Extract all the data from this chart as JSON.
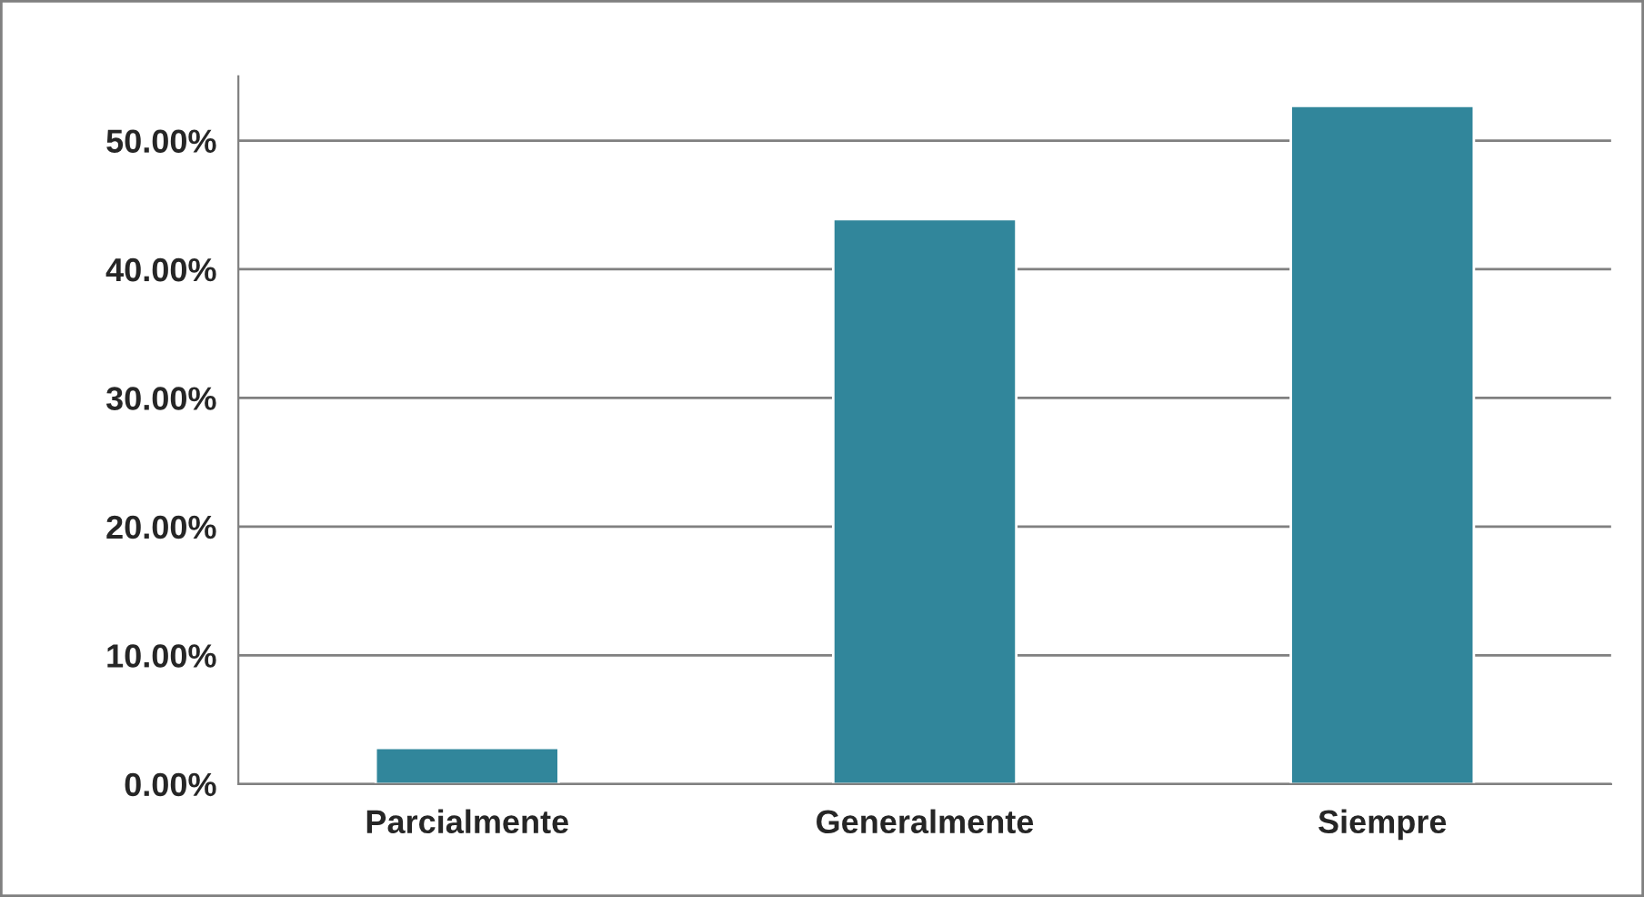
{
  "chart_data": {
    "type": "bar",
    "categories": [
      "Parcialmente",
      "Generalmente",
      "Siempre"
    ],
    "values": [
      2.8,
      43.9,
      52.7
    ],
    "color": "#31869b",
    "ylim": [
      0,
      55
    ],
    "yticks": [
      {
        "value": 0,
        "label": "0.00%"
      },
      {
        "value": 10,
        "label": "10.00%"
      },
      {
        "value": 20,
        "label": "20.00%"
      },
      {
        "value": 30,
        "label": "30.00%"
      },
      {
        "value": 40,
        "label": "40.00%"
      },
      {
        "value": 50,
        "label": "50.00%"
      }
    ],
    "grid": "y",
    "legend": false
  }
}
